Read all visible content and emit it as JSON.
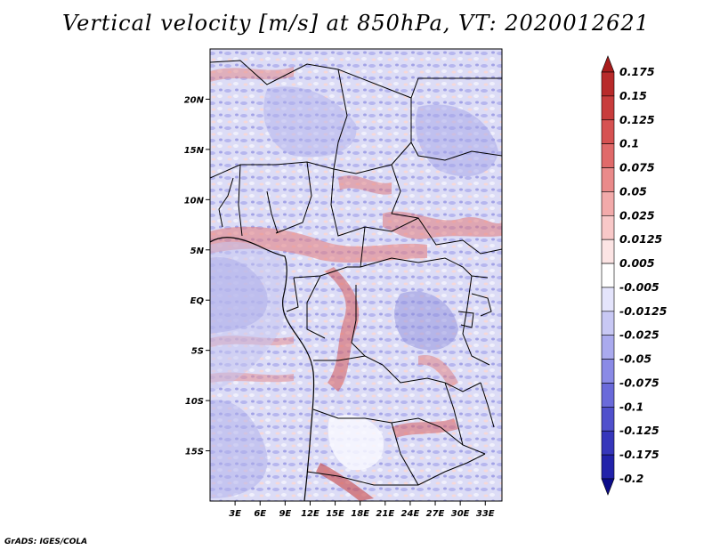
{
  "title": "Vertical velocity [m/s] at 850hPa, VT: 2020012621",
  "credit": "GrADS: IGES/COLA",
  "map": {
    "variable": "Vertical velocity",
    "level": "850hPa",
    "valid_time": "2020012621",
    "lon_range": [
      0,
      35
    ],
    "lat_range": [
      -20,
      25
    ],
    "lon_ticks": [
      {
        "value": 3,
        "label": "3E"
      },
      {
        "value": 6,
        "label": "6E"
      },
      {
        "value": 9,
        "label": "9E"
      },
      {
        "value": 12,
        "label": "12E"
      },
      {
        "value": 15,
        "label": "15E"
      },
      {
        "value": 18,
        "label": "18E"
      },
      {
        "value": 21,
        "label": "21E"
      },
      {
        "value": 24,
        "label": "24E"
      },
      {
        "value": 27,
        "label": "27E"
      },
      {
        "value": 30,
        "label": "30E"
      },
      {
        "value": 33,
        "label": "33E"
      }
    ],
    "lat_ticks": [
      {
        "value": 20,
        "label": "20N"
      },
      {
        "value": 15,
        "label": "15N"
      },
      {
        "value": 10,
        "label": "10N"
      },
      {
        "value": 5,
        "label": "5N"
      },
      {
        "value": 0,
        "label": "EQ"
      },
      {
        "value": -5,
        "label": "5S"
      },
      {
        "value": -10,
        "label": "10S"
      },
      {
        "value": -15,
        "label": "15S"
      }
    ]
  },
  "colorbar": {
    "labels": [
      "0.175",
      "0.15",
      "0.125",
      "0.1",
      "0.075",
      "0.05",
      "0.025",
      "0.0125",
      "0.005",
      "-0.005",
      "-0.0125",
      "-0.025",
      "-0.05",
      "-0.075",
      "-0.1",
      "-0.125",
      "-0.175",
      "-0.2"
    ],
    "colors": [
      "#a81c1c",
      "#b82a2a",
      "#c83c3c",
      "#d65252",
      "#e06a6a",
      "#ea8a8a",
      "#f2aaaa",
      "#f8c8c8",
      "#fce4e4",
      "#ffffff",
      "#e4e4fc",
      "#c8c8f4",
      "#aaaaee",
      "#8a8ae6",
      "#6a6ada",
      "#5050cc",
      "#3636bb",
      "#2222aa",
      "#0c0c8a"
    ]
  }
}
